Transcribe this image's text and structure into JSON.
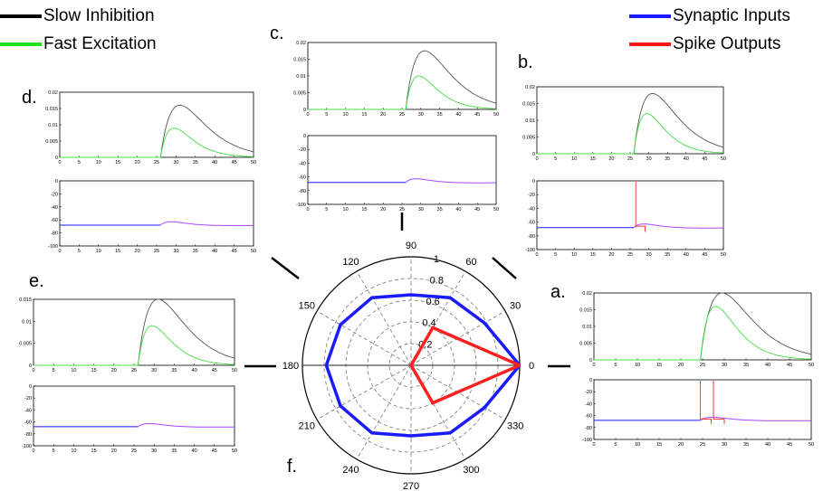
{
  "legend": [
    {
      "label": "Slow Inhibition",
      "color": "#000000"
    },
    {
      "label": "Fast Excitation",
      "color": "#22e022"
    },
    {
      "label": "Synaptic Inputs",
      "color": "#1a1aff"
    },
    {
      "label": "Spike Outputs",
      "color": "#ff1a1a"
    }
  ],
  "colors": {
    "slow_inhibition": "#555555",
    "fast_excitation": "#44dd44",
    "synaptic_inputs": "#1a1aff",
    "spike_outputs": "#ff2020",
    "membrane_trace": "#aa44ff",
    "grid": "#777777"
  },
  "panels": {
    "a": {
      "label": "a."
    },
    "b": {
      "label": "b."
    },
    "c": {
      "label": "c."
    },
    "d": {
      "label": "d."
    },
    "e": {
      "label": "e."
    },
    "f": {
      "label": "f."
    }
  },
  "chart_data": [
    {
      "id": "polar",
      "type": "line",
      "subtype": "polar",
      "title": "",
      "angle_ticks": [
        0,
        30,
        60,
        90,
        120,
        150,
        180,
        210,
        240,
        270,
        300,
        330
      ],
      "radial_ticks": [
        0.2,
        0.4,
        0.6,
        0.8,
        1
      ],
      "rlim": [
        0,
        1
      ],
      "grid": true,
      "series": [
        {
          "name": "Synaptic Inputs",
          "angles": [
            0,
            30,
            60,
            90,
            120,
            150,
            180,
            210,
            240,
            270,
            300,
            330,
            360
          ],
          "r": [
            1.0,
            0.78,
            0.72,
            0.65,
            0.72,
            0.75,
            0.78,
            0.75,
            0.72,
            0.65,
            0.72,
            0.78,
            1.0
          ]
        },
        {
          "name": "Spike Outputs",
          "angles": [
            0,
            60,
            180,
            300,
            360
          ],
          "r": [
            1.0,
            0.4,
            0.0,
            0.4,
            1.0
          ]
        }
      ]
    },
    {
      "id": "a-top",
      "type": "line",
      "xlim": [
        0,
        50
      ],
      "ylim": [
        0,
        0.02
      ],
      "xticks": [
        0,
        5,
        10,
        15,
        20,
        25,
        30,
        35,
        40,
        45,
        50
      ],
      "yticks": [
        "0",
        "0.005",
        "0.01",
        "0.015",
        "0.02"
      ],
      "onset": 24.5,
      "peaks": {
        "slow": 0.02,
        "fast": 0.016
      }
    },
    {
      "id": "a-bottom",
      "type": "line",
      "xlim": [
        0,
        50
      ],
      "ylim": [
        -100,
        0
      ],
      "xticks": [
        0,
        5,
        10,
        15,
        20,
        25,
        30,
        35,
        40,
        45,
        50
      ],
      "yticks": [
        "0",
        "-20",
        "-40",
        "-60",
        "-80",
        "-100"
      ],
      "baseline": -68,
      "onset": 24.5,
      "spikes": [
        24.5,
        27.5
      ]
    },
    {
      "id": "b-top",
      "type": "line",
      "xlim": [
        0,
        50
      ],
      "ylim": [
        0,
        0.02
      ],
      "xticks": [
        0,
        5,
        10,
        15,
        20,
        25,
        30,
        35,
        40,
        45,
        50
      ],
      "yticks": [
        "0",
        "0.005",
        "0.01",
        "0.015",
        "0.02"
      ],
      "onset": 26,
      "peaks": {
        "slow": 0.018,
        "fast": 0.012
      }
    },
    {
      "id": "b-bottom",
      "type": "line",
      "xlim": [
        0,
        50
      ],
      "ylim": [
        -100,
        0
      ],
      "xticks": [
        0,
        5,
        10,
        15,
        20,
        25,
        30,
        35,
        40,
        45,
        50
      ],
      "yticks": [
        "0",
        "-20",
        "-40",
        "-60",
        "-80",
        "-100"
      ],
      "baseline": -68,
      "onset": 26,
      "spikes": [
        26.5
      ]
    },
    {
      "id": "c-top",
      "type": "line",
      "xlim": [
        0,
        50
      ],
      "ylim": [
        0,
        0.02
      ],
      "xticks": [
        0,
        5,
        10,
        15,
        20,
        25,
        30,
        35,
        40,
        45,
        50
      ],
      "yticks": [
        "0",
        "0.005",
        "0.01",
        "0.015",
        "0.02"
      ],
      "onset": 26,
      "peaks": {
        "slow": 0.0175,
        "fast": 0.01
      }
    },
    {
      "id": "c-bottom",
      "type": "line",
      "xlim": [
        0,
        50
      ],
      "ylim": [
        -100,
        0
      ],
      "xticks": [
        0,
        5,
        10,
        15,
        20,
        25,
        30,
        35,
        40,
        45,
        50
      ],
      "yticks": [
        "0",
        "-20",
        "-40",
        "-60",
        "-80",
        "-100"
      ],
      "baseline": -68,
      "onset": 26,
      "spikes": []
    },
    {
      "id": "d-top",
      "type": "line",
      "xlim": [
        0,
        50
      ],
      "ylim": [
        0,
        0.02
      ],
      "xticks": [
        0,
        5,
        10,
        15,
        20,
        25,
        30,
        35,
        40,
        45,
        50
      ],
      "yticks": [
        "0",
        "0.005",
        "0.01",
        "0.015",
        "0.02"
      ],
      "onset": 26,
      "peaks": {
        "slow": 0.016,
        "fast": 0.009
      }
    },
    {
      "id": "d-bottom",
      "type": "line",
      "xlim": [
        0,
        50
      ],
      "ylim": [
        -100,
        0
      ],
      "xticks": [
        0,
        5,
        10,
        15,
        20,
        25,
        30,
        35,
        40,
        45,
        50
      ],
      "yticks": [
        "0",
        "-20",
        "-40",
        "-60",
        "-80",
        "-100"
      ],
      "baseline": -68,
      "onset": 26,
      "spikes": []
    },
    {
      "id": "e-top",
      "type": "line",
      "xlim": [
        0,
        50
      ],
      "ylim": [
        0,
        0.015
      ],
      "xticks": [
        0,
        5,
        10,
        15,
        20,
        25,
        30,
        35,
        40,
        45,
        50
      ],
      "yticks": [
        "0",
        "0.005",
        "0.01",
        "0.015"
      ],
      "onset": 26,
      "peaks": {
        "slow": 0.015,
        "fast": 0.009
      }
    },
    {
      "id": "e-bottom",
      "type": "line",
      "xlim": [
        0,
        50
      ],
      "ylim": [
        -100,
        0
      ],
      "xticks": [
        0,
        5,
        10,
        15,
        20,
        25,
        30,
        35,
        40,
        45,
        50
      ],
      "yticks": [
        "0",
        "-20",
        "-40",
        "-60",
        "-80",
        "-100"
      ],
      "baseline": -68,
      "onset": 26,
      "spikes": []
    }
  ]
}
